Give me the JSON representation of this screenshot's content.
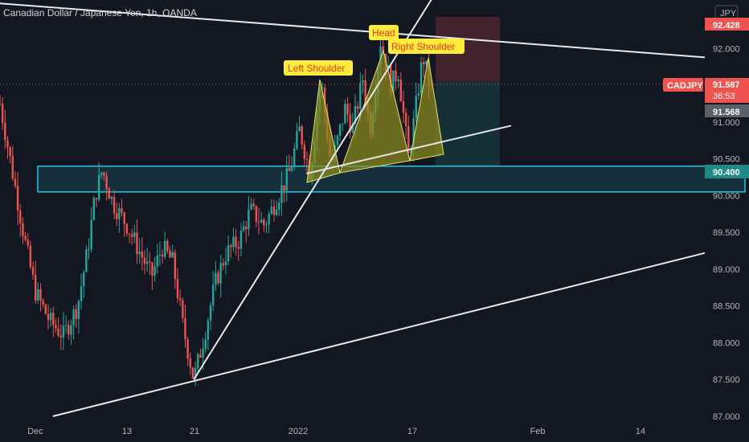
{
  "header": {
    "title": "Canadian Dollar / Japanese Yen, 1h, OANDA"
  },
  "currency_badge": "JPY",
  "symbol_tag": "CADJPY",
  "price_tags": {
    "top": "92.428",
    "last": "91.587",
    "countdown": "36:53",
    "bid": "91.568",
    "support": "90.400"
  },
  "colors": {
    "background": "#131722",
    "candle_up": "#26a69a",
    "candle_down": "#ef5350",
    "zone_border": "#22c4e0",
    "pattern_fill": "#8e8c1f",
    "label_bg": "#ffeb3b",
    "label_text": "#e63a12"
  },
  "pattern_labels": {
    "left": "Left Shoulder",
    "head": "Head",
    "right": "Right Shoulder"
  },
  "chart_data": {
    "type": "candlestick",
    "symbol": "CADJPY",
    "interval": "1h",
    "y_ticks": [
      "92.000",
      "91.500",
      "91.000",
      "90.500",
      "90.000",
      "89.500",
      "89.000",
      "88.500",
      "88.000",
      "87.500",
      "87.000"
    ],
    "x_ticks": [
      "Dec",
      "13",
      "21",
      "2022",
      "17",
      "Feb",
      "14"
    ],
    "ylim": [
      87.0,
      92.55
    ],
    "last_price": 91.587,
    "support_zone": [
      90.05,
      90.4
    ],
    "target_zone": [
      90.4,
      91.55
    ],
    "stop_zone": [
      91.55,
      92.43
    ],
    "path": [
      {
        "t": 0.0,
        "p": 91.25
      },
      {
        "t": 0.02,
        "p": 90.2
      },
      {
        "t": 0.035,
        "p": 89.4
      },
      {
        "t": 0.05,
        "p": 88.7
      },
      {
        "t": 0.07,
        "p": 88.3
      },
      {
        "t": 0.09,
        "p": 88.1
      },
      {
        "t": 0.11,
        "p": 88.5
      },
      {
        "t": 0.125,
        "p": 89.3
      },
      {
        "t": 0.135,
        "p": 90.0
      },
      {
        "t": 0.145,
        "p": 90.35
      },
      {
        "t": 0.16,
        "p": 89.9
      },
      {
        "t": 0.18,
        "p": 89.6
      },
      {
        "t": 0.2,
        "p": 89.2
      },
      {
        "t": 0.215,
        "p": 88.9
      },
      {
        "t": 0.23,
        "p": 89.3
      },
      {
        "t": 0.245,
        "p": 89.1
      },
      {
        "t": 0.26,
        "p": 88.2
      },
      {
        "t": 0.275,
        "p": 87.5
      },
      {
        "t": 0.29,
        "p": 88.1
      },
      {
        "t": 0.305,
        "p": 88.8
      },
      {
        "t": 0.32,
        "p": 89.2
      },
      {
        "t": 0.34,
        "p": 89.4
      },
      {
        "t": 0.355,
        "p": 89.8
      },
      {
        "t": 0.375,
        "p": 89.6
      },
      {
        "t": 0.395,
        "p": 90.0
      },
      {
        "t": 0.41,
        "p": 90.3
      },
      {
        "t": 0.425,
        "p": 90.9
      },
      {
        "t": 0.44,
        "p": 90.3
      },
      {
        "t": 0.455,
        "p": 91.6
      },
      {
        "t": 0.47,
        "p": 90.4
      },
      {
        "t": 0.49,
        "p": 91.2
      },
      {
        "t": 0.5,
        "p": 90.9
      },
      {
        "t": 0.515,
        "p": 91.6
      },
      {
        "t": 0.525,
        "p": 90.9
      },
      {
        "t": 0.54,
        "p": 92.1
      },
      {
        "t": 0.555,
        "p": 91.5
      },
      {
        "t": 0.565,
        "p": 91.7
      },
      {
        "t": 0.58,
        "p": 90.5
      },
      {
        "t": 0.6,
        "p": 91.9
      },
      {
        "t": 0.615,
        "p": 91.3
      }
    ],
    "lines": [
      {
        "name": "upper-trendline",
        "from": [
          -0.05,
          92.65
        ],
        "to": [
          1.0,
          91.88
        ]
      },
      {
        "name": "rising-trendline",
        "from": [
          0.275,
          87.5
        ],
        "to": [
          0.66,
          93.4
        ]
      },
      {
        "name": "long-support-trendline",
        "from": [
          0.075,
          87.0
        ],
        "to": [
          1.0,
          89.22
        ]
      },
      {
        "name": "neckline",
        "from": [
          0.435,
          90.3
        ],
        "to": [
          0.725,
          90.95
        ]
      }
    ]
  }
}
